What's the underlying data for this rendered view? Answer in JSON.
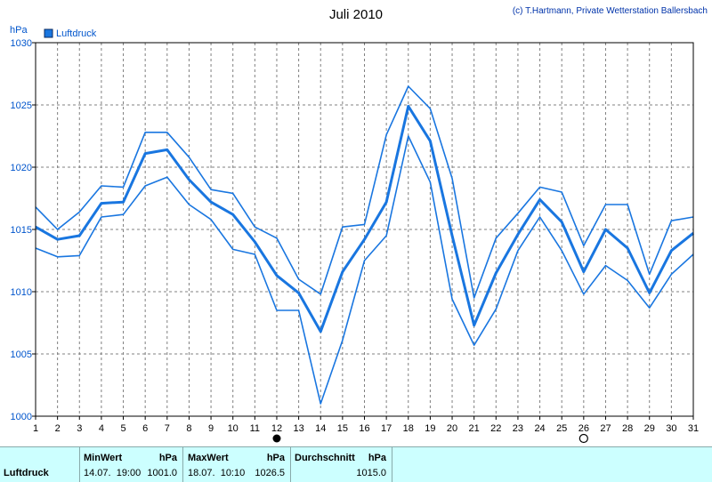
{
  "title": "Juli 2010",
  "copyright": "(c) T.Hartmann, Private Wetterstation Ballersbach",
  "colors": {
    "line": "#1976e0",
    "grid": "#808080",
    "text": "#0055cc",
    "stats_bg": "#ccffff"
  },
  "chart_data": {
    "type": "line",
    "title": "Juli 2010",
    "ylabel": "hPa",
    "xlabel": "",
    "legend": {
      "label": "Luftdruck",
      "position": "top-left"
    },
    "x": [
      1,
      2,
      3,
      4,
      5,
      6,
      7,
      8,
      9,
      10,
      11,
      12,
      13,
      14,
      15,
      16,
      17,
      18,
      19,
      20,
      21,
      22,
      23,
      24,
      25,
      26,
      27,
      28,
      29,
      30,
      31
    ],
    "xlim": [
      1,
      31
    ],
    "ylim": [
      1000,
      1030
    ],
    "yticks": [
      1000,
      1005,
      1010,
      1015,
      1020,
      1025,
      1030
    ],
    "grid": true,
    "series": [
      {
        "name": "Luftdruck",
        "values": [
          1015.2,
          1014.2,
          1014.5,
          1017.1,
          1017.2,
          1021.1,
          1021.4,
          1019.0,
          1017.2,
          1016.2,
          1014.0,
          1011.3,
          1009.9,
          1006.8,
          1011.6,
          1014.2,
          1017.2,
          1024.9,
          1022.1,
          1014.5,
          1007.3,
          1011.5,
          1014.6,
          1017.4,
          1015.6,
          1011.6,
          1015.0,
          1013.5,
          1009.9,
          1013.3,
          1014.7
        ]
      },
      {
        "name": "",
        "values": [
          1016.8,
          1015.0,
          1016.4,
          1018.5,
          1018.4,
          1022.8,
          1022.8,
          1020.8,
          1018.2,
          1017.9,
          1015.2,
          1014.3,
          1011.0,
          1009.8,
          1015.2,
          1015.4,
          1022.6,
          1026.5,
          1024.7,
          1019.1,
          1009.5,
          1014.3,
          1016.3,
          1018.4,
          1018.0,
          1013.7,
          1017.0,
          1017.0,
          1011.4,
          1015.7,
          1016.0
        ]
      },
      {
        "name": "",
        "values": [
          1013.5,
          1012.8,
          1012.9,
          1016.0,
          1016.2,
          1018.5,
          1019.2,
          1017.0,
          1015.8,
          1013.4,
          1013.0,
          1008.5,
          1008.5,
          1001.0,
          1006.1,
          1012.5,
          1014.5,
          1022.5,
          1018.8,
          1009.4,
          1005.7,
          1008.6,
          1013.3,
          1016.0,
          1013.3,
          1009.8,
          1012.1,
          1010.9,
          1008.7,
          1011.4,
          1013.0
        ]
      }
    ],
    "markers": [
      {
        "x": 12,
        "style": "filled"
      },
      {
        "x": 26,
        "style": "open"
      }
    ]
  },
  "stats": {
    "row_label": "Luftdruck",
    "min": {
      "label": "MinWert",
      "unit": "hPa",
      "time": "14.07.  19:00",
      "value": "1001.0"
    },
    "max": {
      "label": "MaxWert",
      "unit": "hPa",
      "time": "18.07.  10:10",
      "value": "1026.5"
    },
    "avg": {
      "label": "Durchschnitt",
      "unit": "hPa",
      "value": "1015.0"
    }
  }
}
